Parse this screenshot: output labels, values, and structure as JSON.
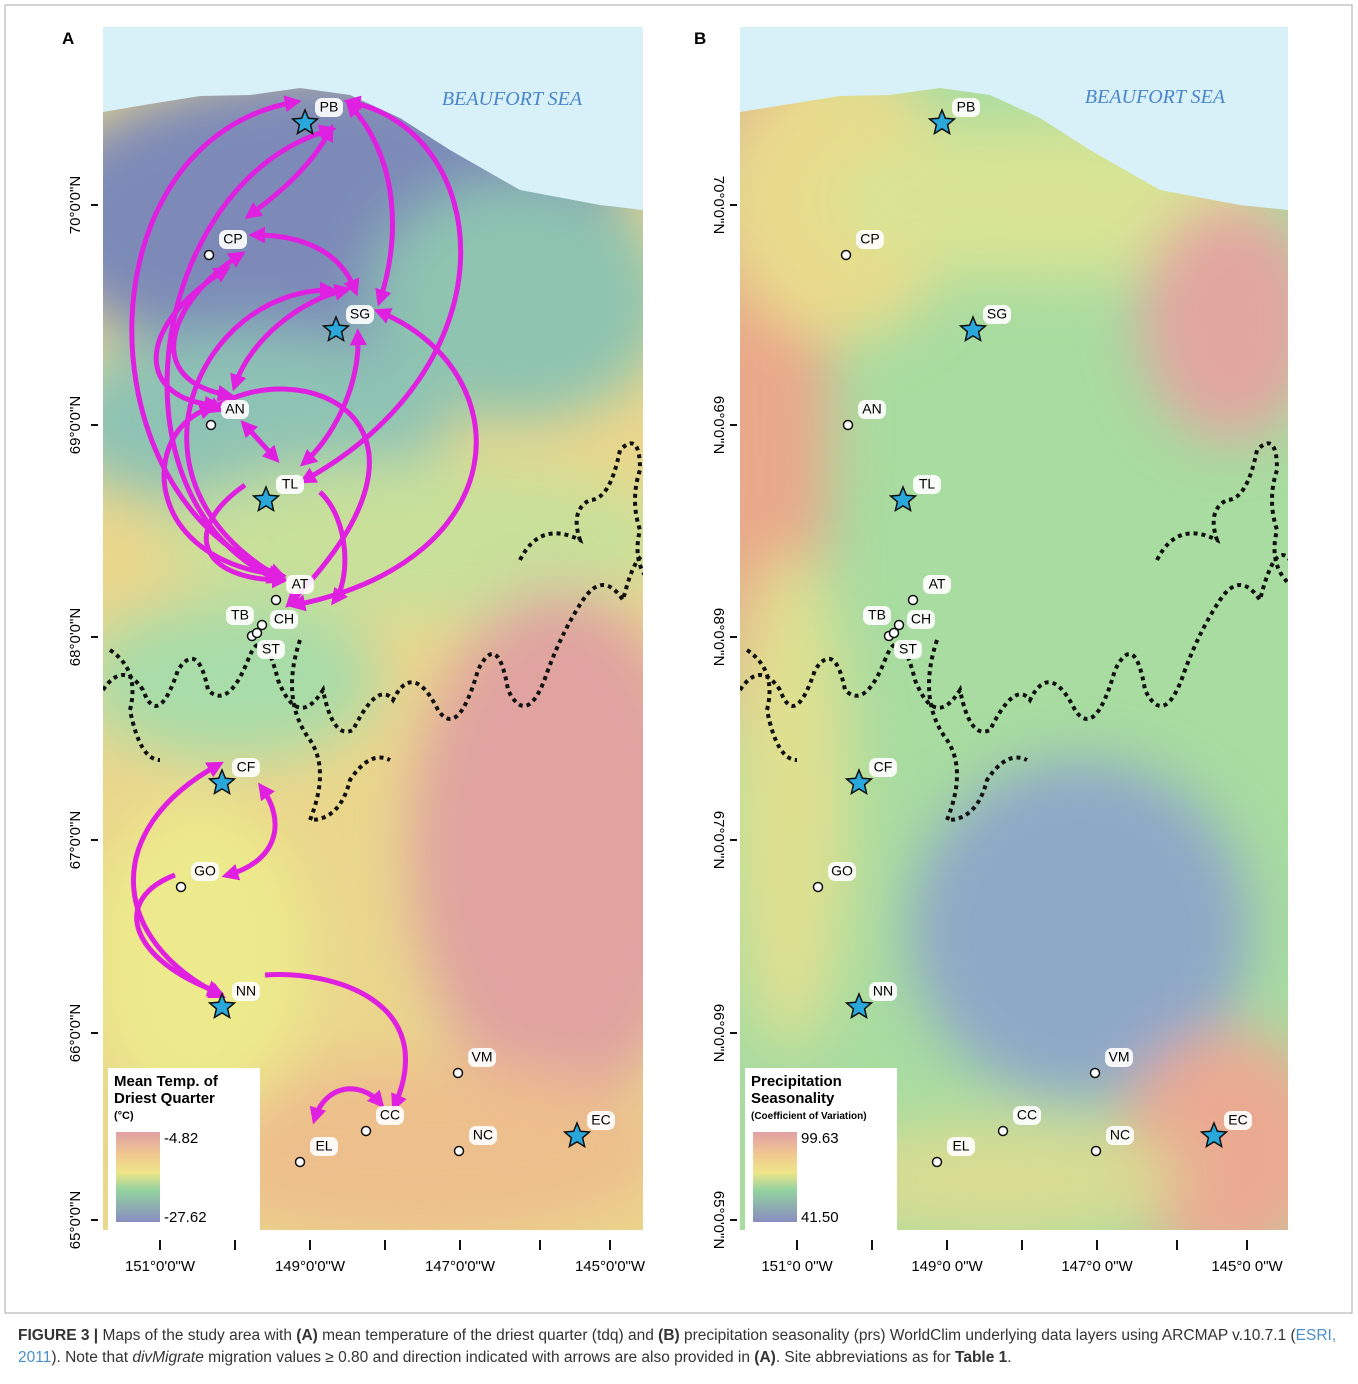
{
  "panels": [
    {
      "letter": "A",
      "sea_label": "BEAUFORT SEA",
      "lat_labels": [
        "70°0'0\"N",
        "69°0'0\"N",
        "68°0'0\"N",
        "67°0'0\"N",
        "66°0'0\"N",
        "65°0'0\"N"
      ],
      "lon_labels": [
        "151°0'0\"W",
        "149°0'0\"W",
        "147°0'0\"W",
        "145°0'0\"W"
      ],
      "legend": {
        "title": [
          "Mean Temp. of",
          "Driest Quarter"
        ],
        "unit": "(°C)",
        "max": "-4.82",
        "min": "-27.62"
      },
      "sites": [
        {
          "code": "PB",
          "kind": "star"
        },
        {
          "code": "CP",
          "kind": "circle"
        },
        {
          "code": "SG",
          "kind": "star"
        },
        {
          "code": "AN",
          "kind": "circle"
        },
        {
          "code": "TL",
          "kind": "star"
        },
        {
          "code": "AT",
          "kind": "circle"
        },
        {
          "code": "TB",
          "kind": "circle"
        },
        {
          "code": "CH",
          "kind": "circle"
        },
        {
          "code": "ST",
          "kind": "circle"
        },
        {
          "code": "CF",
          "kind": "star"
        },
        {
          "code": "GO",
          "kind": "circle"
        },
        {
          "code": "NN",
          "kind": "star"
        },
        {
          "code": "VM",
          "kind": "circle"
        },
        {
          "code": "CC",
          "kind": "circle"
        },
        {
          "code": "NC",
          "kind": "circle"
        },
        {
          "code": "EL",
          "kind": "circle"
        },
        {
          "code": "EC",
          "kind": "star"
        }
      ]
    },
    {
      "letter": "B",
      "sea_label": "BEAUFORT SEA",
      "lat_labels": [
        "70°0'0\"N",
        "69°0'0\"N",
        "68°0'0\"N",
        "67°0'0\"N",
        "66°0'0\"N",
        "65°0'0\"N"
      ],
      "lon_labels": [
        "151°0 0\"W",
        "149°0 0\"W",
        "147°0 0\"W",
        "145°0 0\"W"
      ],
      "legend": {
        "title": [
          "Precipitation",
          "Seasonality"
        ],
        "unit": "(Coefficient of Variation)",
        "max": "99.63",
        "min": "41.50"
      },
      "sites": [
        {
          "code": "PB",
          "kind": "star"
        },
        {
          "code": "CP",
          "kind": "circle"
        },
        {
          "code": "SG",
          "kind": "star"
        },
        {
          "code": "AN",
          "kind": "circle"
        },
        {
          "code": "TL",
          "kind": "star"
        },
        {
          "code": "AT",
          "kind": "circle"
        },
        {
          "code": "TB",
          "kind": "circle"
        },
        {
          "code": "CH",
          "kind": "circle"
        },
        {
          "code": "ST",
          "kind": "circle"
        },
        {
          "code": "CF",
          "kind": "star"
        },
        {
          "code": "GO",
          "kind": "circle"
        },
        {
          "code": "NN",
          "kind": "star"
        },
        {
          "code": "VM",
          "kind": "circle"
        },
        {
          "code": "CC",
          "kind": "circle"
        },
        {
          "code": "NC",
          "kind": "circle"
        },
        {
          "code": "EL",
          "kind": "circle"
        },
        {
          "code": "EC",
          "kind": "star"
        }
      ]
    }
  ],
  "caption": [
    "FIGURE 3 |",
    " Maps of the study area with ",
    "(A)",
    " mean temperature of the driest quarter (tdq) and ",
    "(B)",
    " precipitation seasonality (prs) WorldClim underlying data layers using ARCMAP v.10.7.1 (",
    "ESRI, 2011",
    "). Note that ",
    "divMigrate",
    " migration values ≥ 0.80 and direction indicated with arrows are also provided in ",
    "(A)",
    ". Site abbreviations as for ",
    "Table 1",
    "."
  ]
}
